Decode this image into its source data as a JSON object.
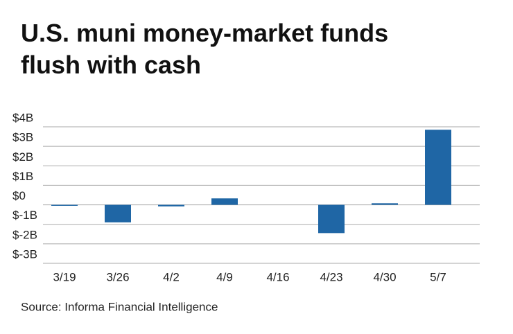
{
  "chart_data": {
    "type": "bar",
    "title": "U.S. muni money-market funds flush with cash",
    "source": "Source: Informa Financial Intelligence",
    "categories": [
      "3/19",
      "3/26",
      "4/2",
      "4/9",
      "4/16",
      "4/23",
      "4/30",
      "5/7"
    ],
    "values": [
      -0.05,
      -0.9,
      -0.08,
      0.33,
      0,
      -1.45,
      0.08,
      3.85
    ],
    "color": "#1f66a5",
    "ylim": [
      -3,
      4
    ],
    "yticks": [
      {
        "value": -3,
        "label": "$-3B"
      },
      {
        "value": -2,
        "label": "$-2B"
      },
      {
        "value": -1,
        "label": "$-1B"
      },
      {
        "value": 0,
        "label": "$0"
      },
      {
        "value": 1,
        "label": "$1B"
      },
      {
        "value": 2,
        "label": "$2B"
      },
      {
        "value": 3,
        "label": "$3B"
      },
      {
        "value": 4,
        "label": "$4B"
      }
    ],
    "grid": true
  }
}
